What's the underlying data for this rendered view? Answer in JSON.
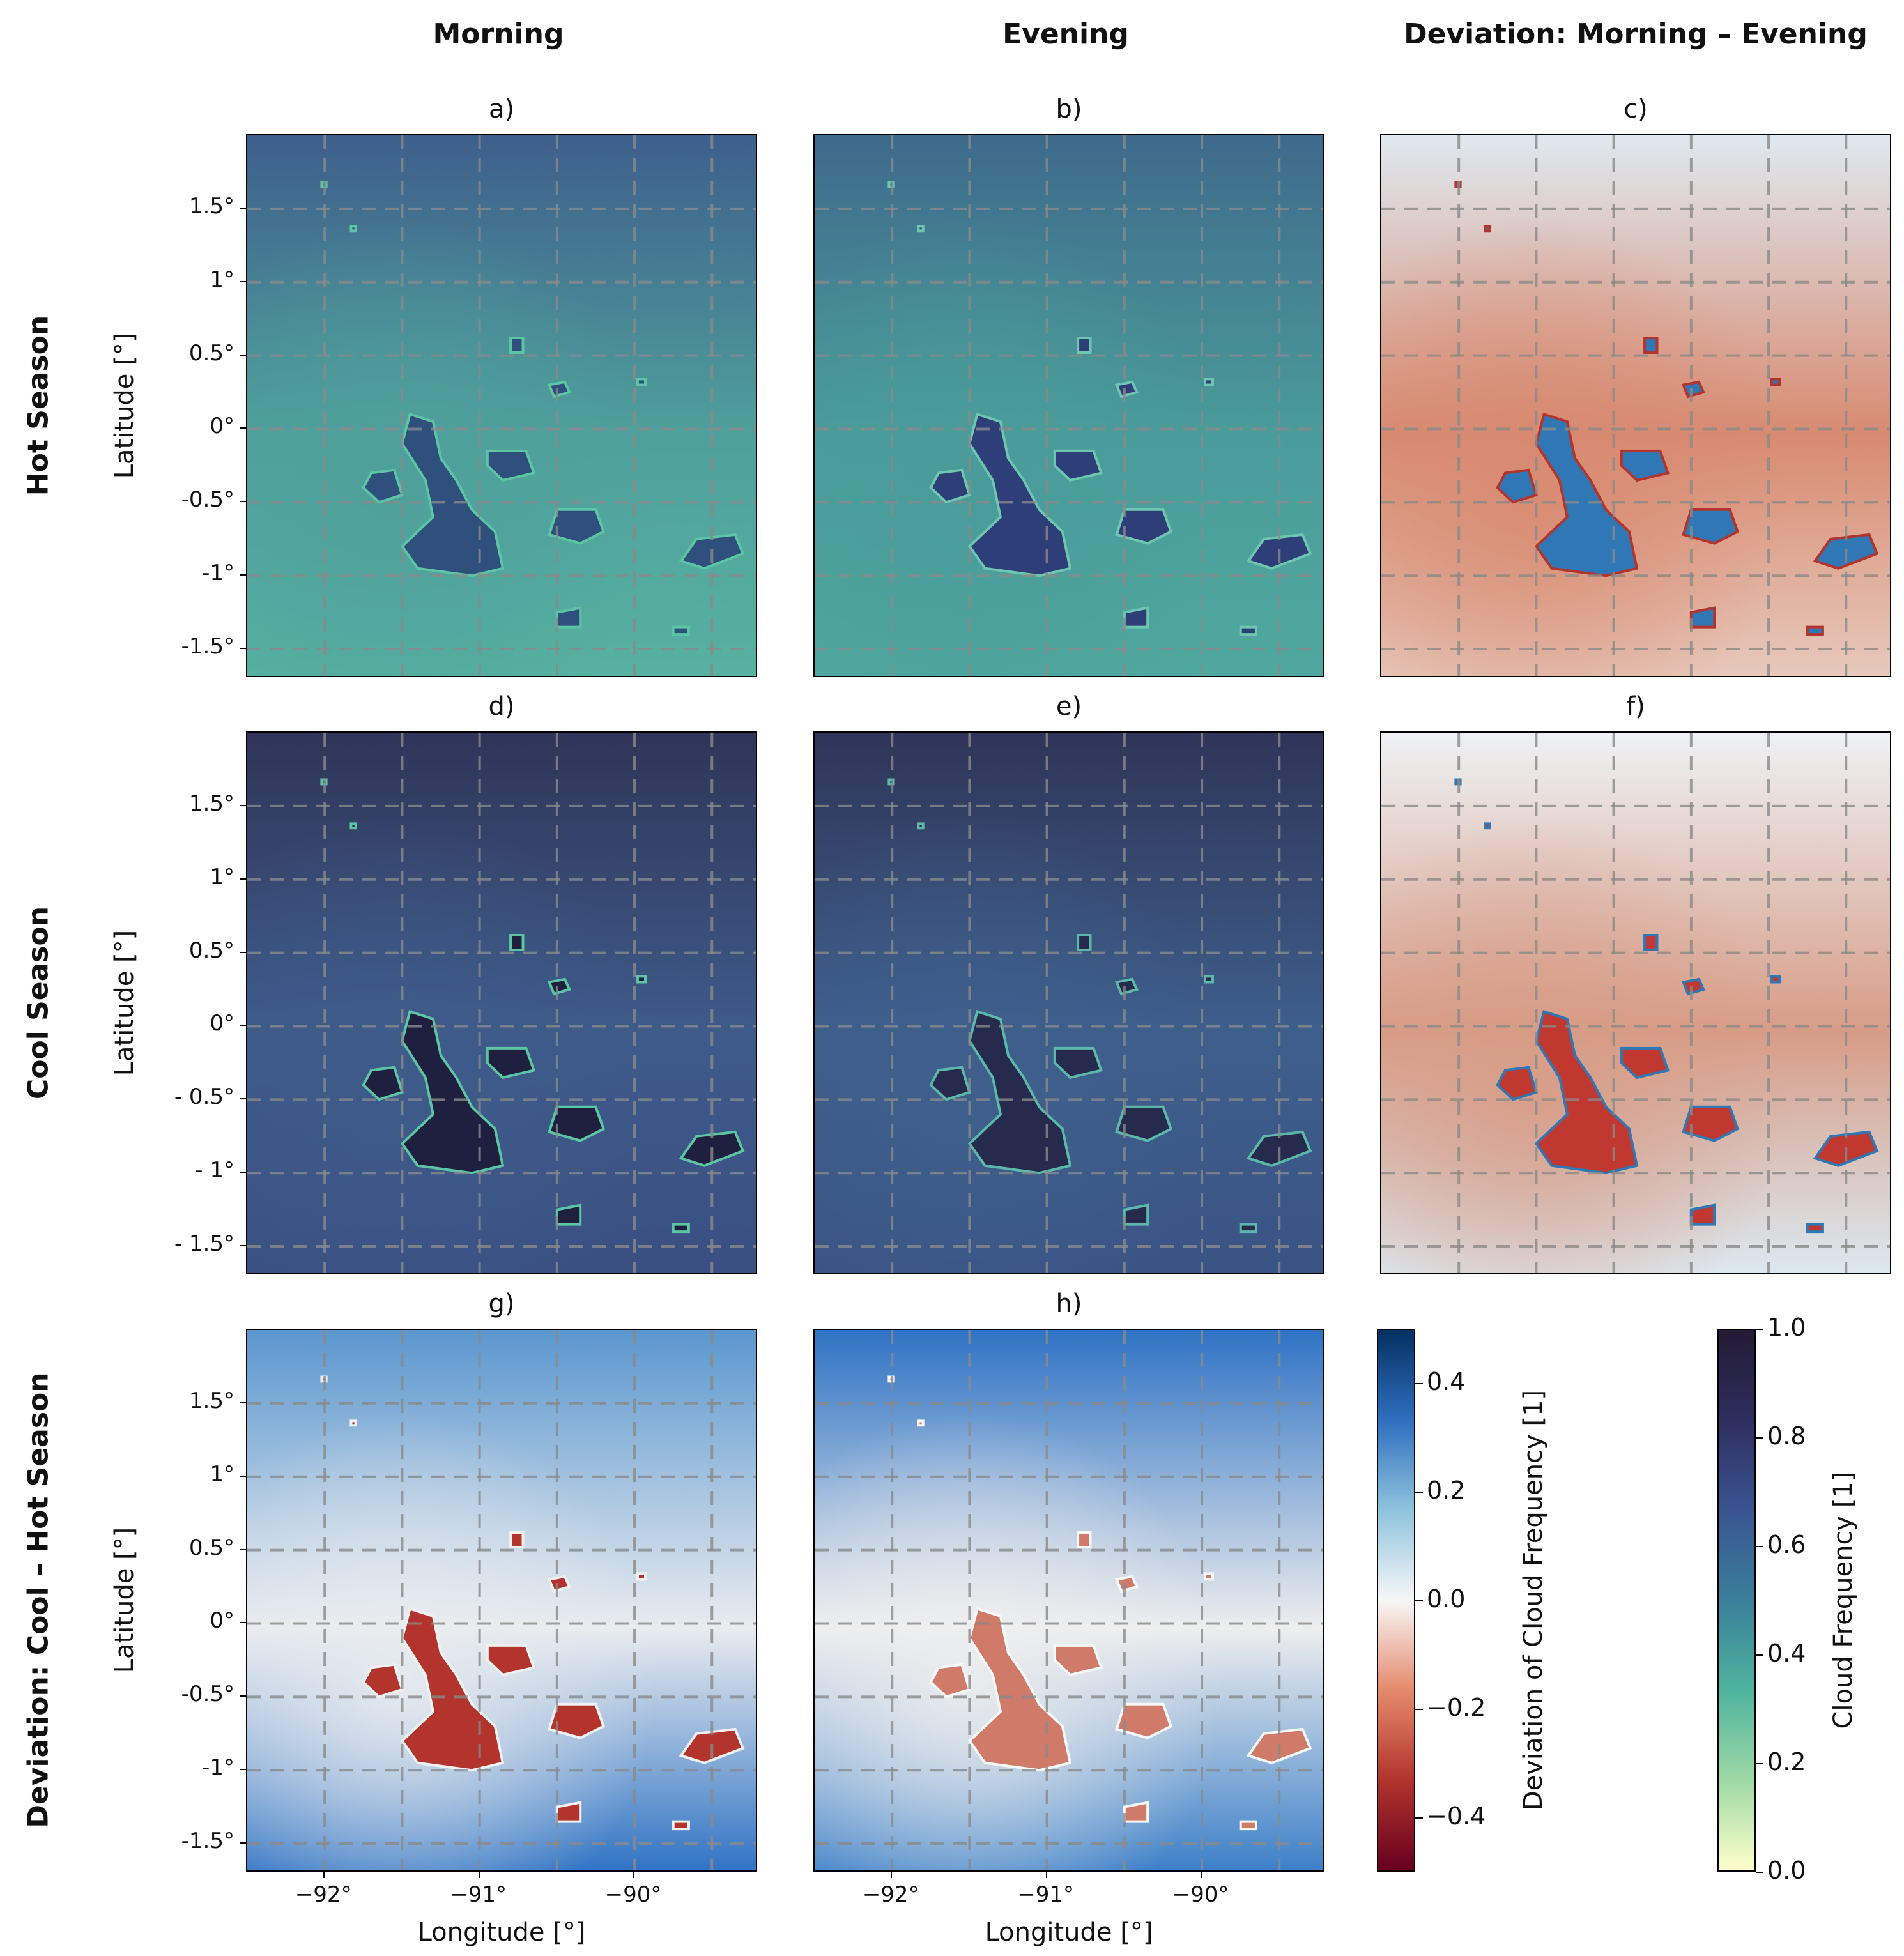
{
  "column_titles": [
    "Morning",
    "Evening",
    "Deviation: Morning – Evening"
  ],
  "row_titles": [
    "Hot Season",
    "Cool Season",
    "Deviation: Cool – Hot Season"
  ],
  "panel_labels": [
    "a)",
    "b)",
    "c)",
    "d)",
    "e)",
    "f)",
    "g)",
    "h)"
  ],
  "y_axis_label": "Latitude [°]",
  "x_axis_label": "Longitude [°]",
  "y_ticks_hot": [
    "1.5°",
    "1°",
    "0.5°",
    "0°",
    "-0.5°",
    "-1°",
    "-1.5°"
  ],
  "y_ticks_cool": [
    "1.5°",
    "1°",
    "0.5°",
    "0°",
    "- 0.5°",
    "- 1°",
    "- 1.5°"
  ],
  "y_ticks_dev": [
    "1.5°",
    "1°",
    "0.5°",
    "0°",
    "-0.5°",
    "-1°",
    "-1.5°"
  ],
  "x_ticks": [
    "−92°",
    "−91°",
    "−90°"
  ],
  "chart_data": {
    "type": "heatmap",
    "extent": {
      "lon": [
        -92.5,
        -89.2
      ],
      "lat": [
        -1.7,
        2.0
      ]
    },
    "grid": "dashed",
    "y_tick_values": [
      1.5,
      1.0,
      0.5,
      0.0,
      -0.5,
      -1.0,
      -1.5
    ],
    "x_tick_values": [
      -92,
      -91,
      -90
    ],
    "colorbars": [
      {
        "label": "Deviation of Cloud Frequency [1]",
        "range": [
          -0.5,
          0.5
        ],
        "ticks": [
          "0.4",
          "0.2",
          "0.0",
          "−0.2",
          "−0.4"
        ],
        "tick_values": [
          0.4,
          0.2,
          0.0,
          -0.2,
          -0.4
        ],
        "colors": [
          "#67001f",
          "#b2342d",
          "#e58a6c",
          "#f7f7f7",
          "#8fc3dd",
          "#2f6fbf",
          "#053061"
        ]
      },
      {
        "label": "Cloud Frequency [1]",
        "range": [
          0.0,
          1.0
        ],
        "ticks": [
          "1.0",
          "0.8",
          "0.6",
          "0.4",
          "0.2",
          "0.0"
        ],
        "tick_values": [
          1.0,
          0.8,
          0.6,
          0.4,
          0.2,
          0.0
        ],
        "colors": [
          "#ffffcc",
          "#9ed9a5",
          "#4fb39e",
          "#3a7f9a",
          "#3a5491",
          "#2e2e5e",
          "#231b35"
        ]
      }
    ]
  }
}
